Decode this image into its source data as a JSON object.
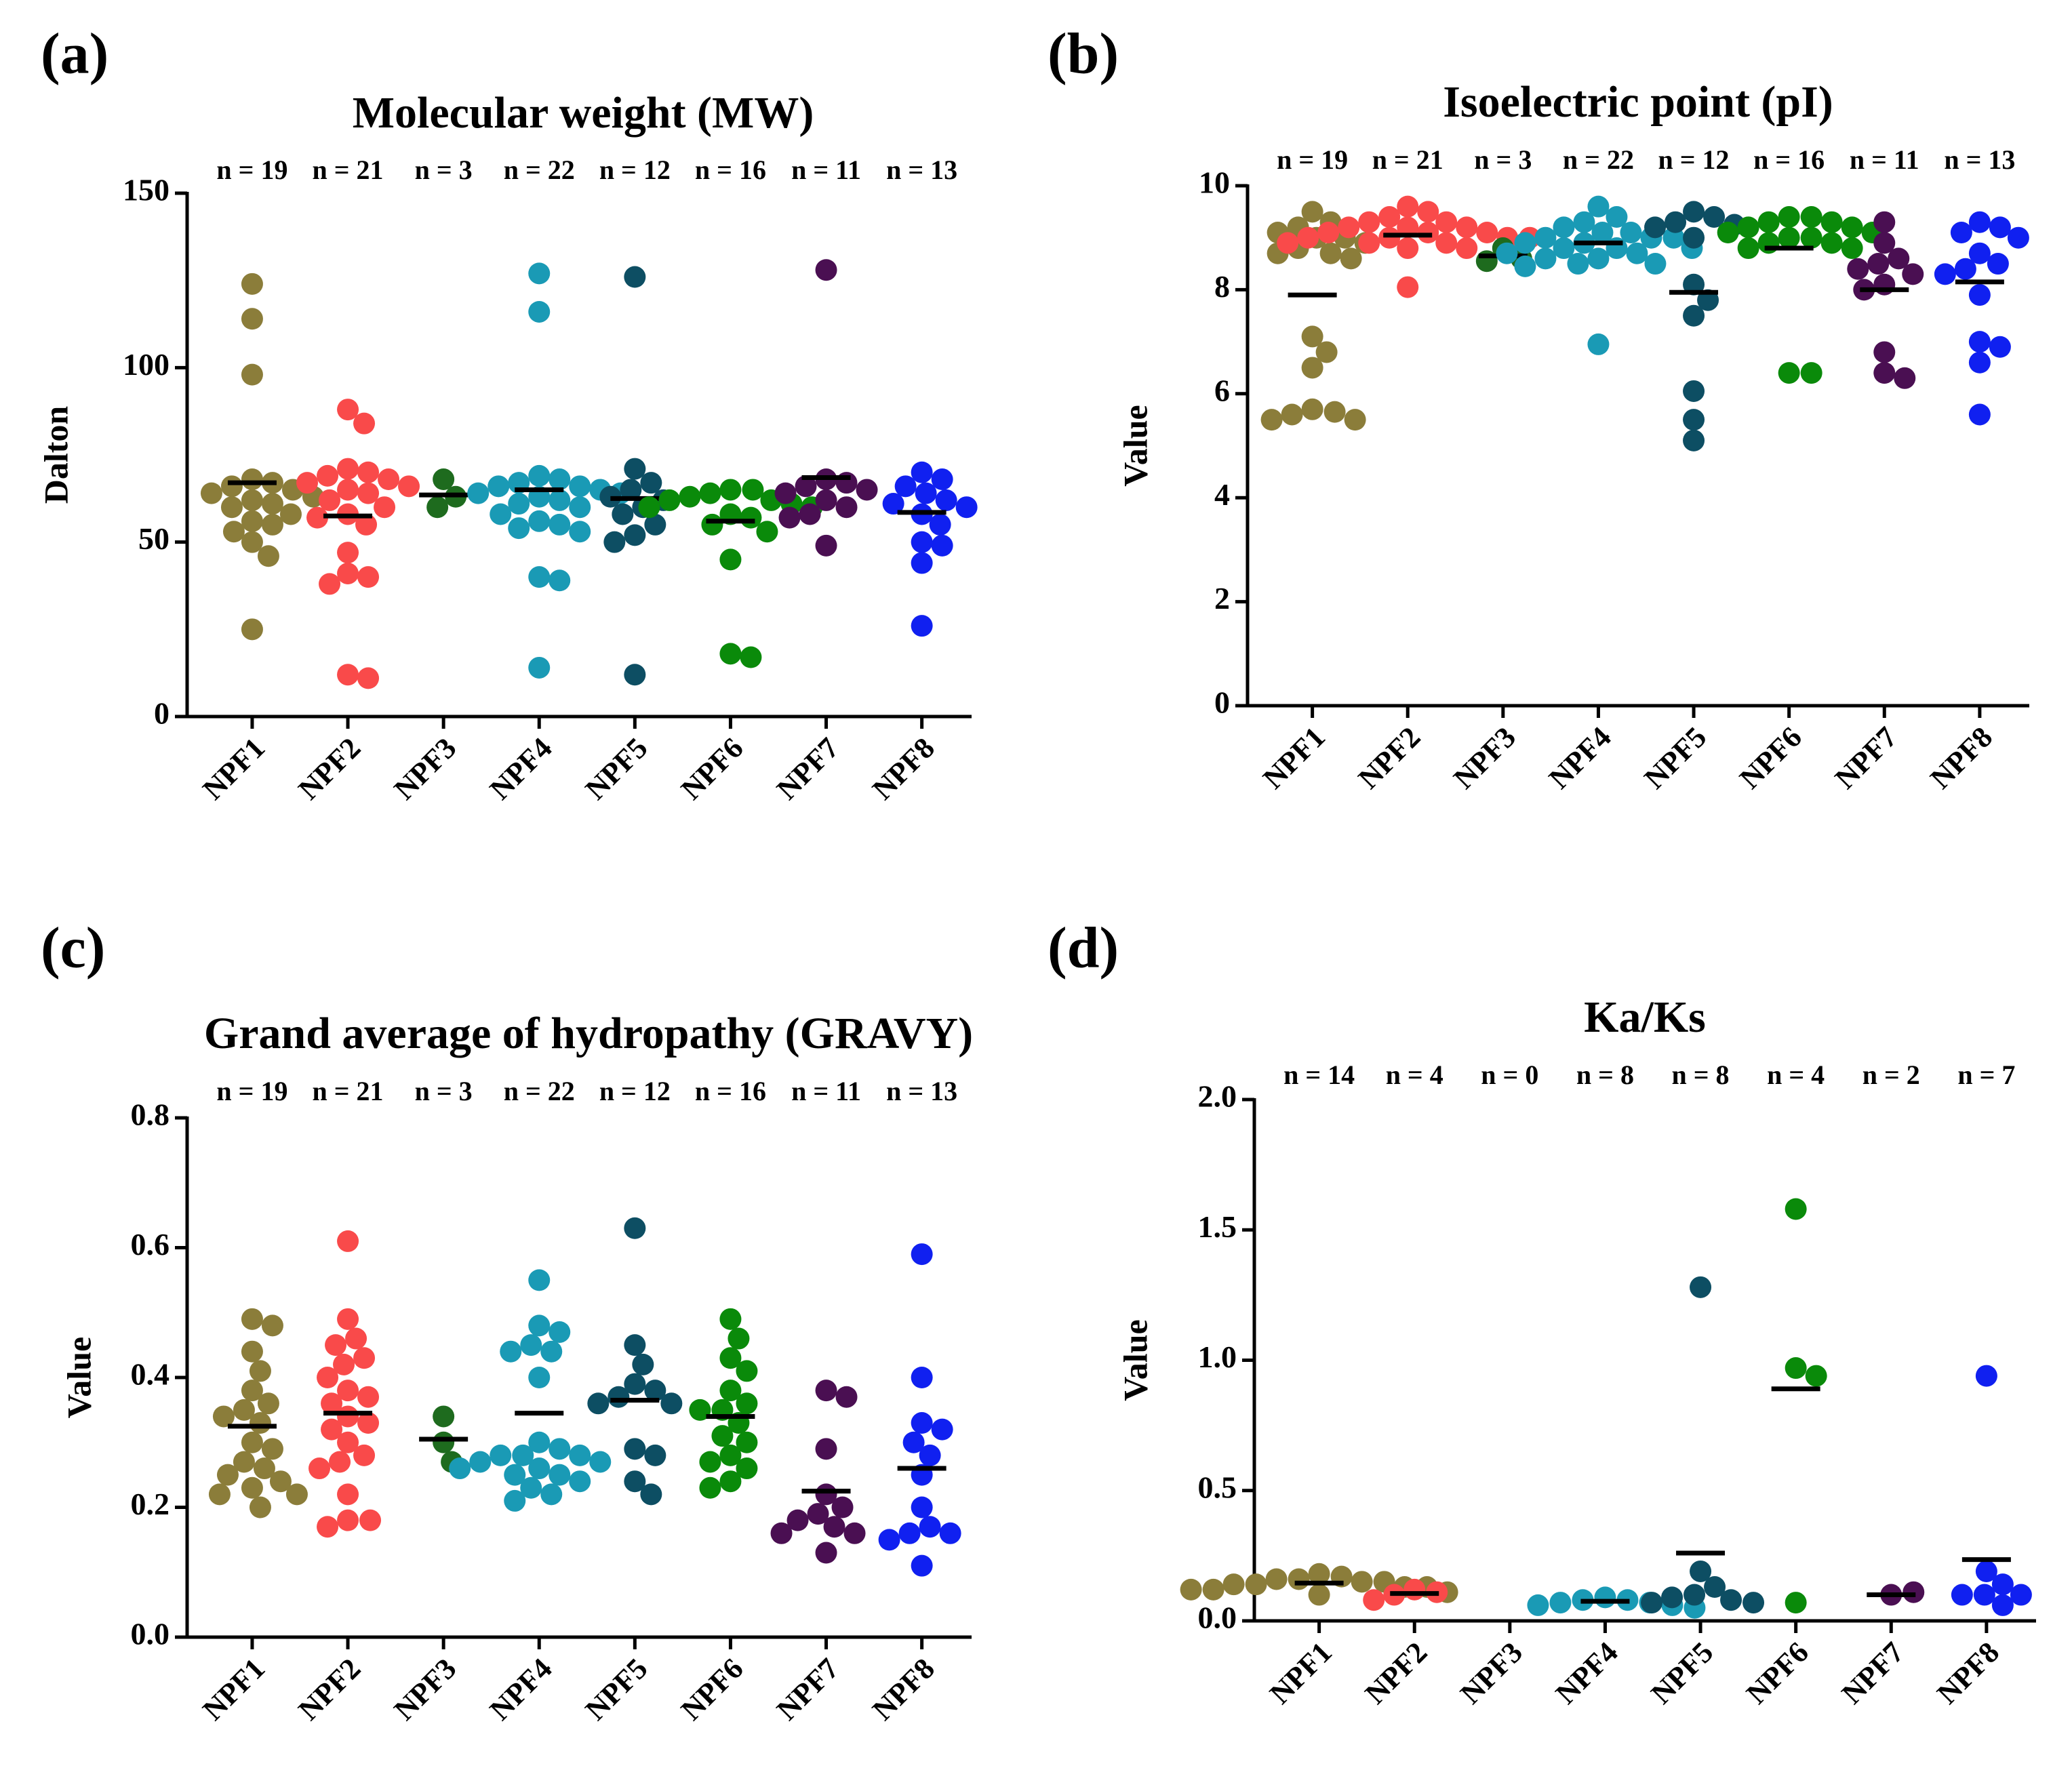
{
  "chart_data": [
    {
      "type": "strip",
      "panel_label": "(a)",
      "title": "Molecular weight (MW)",
      "ylabel": "Dalton",
      "categories": [
        "NPF1",
        "NPF2",
        "NPF3",
        "NPF4",
        "NPF5",
        "NPF6",
        "NPF7",
        "NPF8"
      ],
      "colors": [
        "#8b7d3a",
        "#f94a4a",
        "#1e6b1e",
        "#1a9ab5",
        "#0d4e63",
        "#0a8a0a",
        "#4a0f52",
        "#1020f0"
      ],
      "n_labels": [
        "n = 19",
        "n = 21",
        "n = 3",
        "n = 22",
        "n = 12",
        "n = 16",
        "n = 11",
        "n = 13"
      ],
      "values": [
        [
          124,
          114,
          98,
          68,
          67,
          66,
          65,
          64,
          63,
          62,
          61,
          60,
          58,
          56,
          55,
          53,
          50,
          46,
          25
        ],
        [
          88,
          84,
          71,
          70,
          69,
          68,
          67,
          66,
          65,
          64,
          62,
          60,
          58,
          57,
          55,
          47,
          41,
          40,
          38,
          12,
          11
        ],
        [
          68,
          63,
          60
        ],
        [
          127,
          116,
          69,
          68,
          67,
          66,
          66,
          65,
          64,
          64,
          63,
          62,
          61,
          60,
          58,
          56,
          55,
          54,
          53,
          40,
          39,
          14
        ],
        [
          126,
          71,
          67,
          65,
          63,
          62,
          60,
          58,
          55,
          52,
          50,
          12
        ],
        [
          65,
          65,
          64,
          63,
          62,
          62,
          61,
          60,
          60,
          58,
          57,
          55,
          53,
          45,
          18,
          17
        ],
        [
          128,
          68,
          67,
          66,
          65,
          64,
          62,
          60,
          58,
          57,
          49
        ],
        [
          70,
          68,
          66,
          64,
          62,
          61,
          60,
          58,
          55,
          50,
          49,
          44,
          26
        ]
      ],
      "means": [
        67,
        57.5,
        63.5,
        65,
        62.5,
        56,
        68.5,
        58.5
      ],
      "ylim": [
        0,
        150
      ],
      "yticks": [
        0,
        50,
        100,
        150
      ]
    },
    {
      "type": "strip",
      "panel_label": "(b)",
      "title": "Isoelectric point (pI)",
      "ylabel": "Value",
      "categories": [
        "NPF1",
        "NPF2",
        "NPF3",
        "NPF4",
        "NPF5",
        "NPF6",
        "NPF7",
        "NPF8"
      ],
      "colors": [
        "#8b7d3a",
        "#f94a4a",
        "#1e6b1e",
        "#1a9ab5",
        "#0d4e63",
        "#0a8a0a",
        "#4a0f52",
        "#1020f0"
      ],
      "n_labels": [
        "n = 19",
        "n = 21",
        "n = 3",
        "n = 22",
        "n = 12",
        "n = 16",
        "n = 11",
        "n = 13"
      ],
      "values": [
        [
          9.5,
          9.3,
          9.2,
          9.1,
          9.0,
          9.0,
          8.9,
          8.8,
          8.7,
          8.7,
          8.6,
          7.1,
          6.8,
          6.5,
          5.7,
          5.65,
          5.6,
          5.5,
          5.5
        ],
        [
          9.6,
          9.5,
          9.4,
          9.3,
          9.3,
          9.2,
          9.2,
          9.2,
          9.1,
          9.1,
          9.1,
          9.0,
          9.0,
          9.0,
          9.0,
          8.9,
          8.9,
          8.9,
          8.8,
          8.8,
          8.05
        ],
        [
          8.8,
          8.6,
          8.55
        ],
        [
          9.6,
          9.4,
          9.3,
          9.2,
          9.1,
          9.1,
          9.0,
          9.0,
          9.0,
          8.9,
          8.9,
          8.8,
          8.8,
          8.8,
          8.7,
          8.7,
          8.6,
          8.6,
          8.5,
          8.5,
          8.45,
          6.95
        ],
        [
          9.5,
          9.4,
          9.3,
          9.25,
          9.2,
          9.0,
          8.1,
          7.8,
          7.5,
          6.05,
          5.5,
          5.1
        ],
        [
          9.4,
          9.4,
          9.3,
          9.3,
          9.2,
          9.2,
          9.1,
          9.1,
          9.0,
          9.0,
          8.9,
          8.9,
          8.8,
          8.8,
          6.4,
          6.4
        ],
        [
          9.3,
          8.9,
          8.6,
          8.5,
          8.4,
          8.3,
          8.1,
          8.0,
          6.8,
          6.4,
          6.3
        ],
        [
          9.3,
          9.2,
          9.1,
          9.0,
          8.7,
          8.5,
          8.4,
          8.3,
          7.9,
          7.0,
          6.9,
          6.6,
          5.6
        ]
      ],
      "means": [
        7.9,
        9.05,
        8.65,
        8.9,
        7.95,
        8.8,
        8.0,
        8.15
      ],
      "ylim": [
        0,
        10
      ],
      "yticks": [
        0,
        2,
        4,
        6,
        8,
        10
      ]
    },
    {
      "type": "strip",
      "panel_label": "(c)",
      "title": "Grand average of hydropathy (GRAVY)",
      "ylabel": "Value",
      "categories": [
        "NPF1",
        "NPF2",
        "NPF3",
        "NPF4",
        "NPF5",
        "NPF6",
        "NPF7",
        "NPF8"
      ],
      "colors": [
        "#8b7d3a",
        "#f94a4a",
        "#1e6b1e",
        "#1a9ab5",
        "#0d4e63",
        "#0a8a0a",
        "#4a0f52",
        "#1020f0"
      ],
      "n_labels": [
        "n = 19",
        "n = 21",
        "n = 3",
        "n = 22",
        "n = 12",
        "n = 16",
        "n = 11",
        "n = 13"
      ],
      "values": [
        [
          0.49,
          0.48,
          0.44,
          0.41,
          0.38,
          0.36,
          0.35,
          0.34,
          0.33,
          0.3,
          0.29,
          0.27,
          0.26,
          0.25,
          0.24,
          0.23,
          0.22,
          0.22,
          0.2
        ],
        [
          0.61,
          0.49,
          0.46,
          0.45,
          0.43,
          0.42,
          0.4,
          0.38,
          0.37,
          0.36,
          0.34,
          0.33,
          0.32,
          0.3,
          0.28,
          0.27,
          0.26,
          0.22,
          0.18,
          0.18,
          0.17
        ],
        [
          0.34,
          0.3,
          0.27
        ],
        [
          0.55,
          0.48,
          0.47,
          0.45,
          0.44,
          0.44,
          0.4,
          0.3,
          0.29,
          0.28,
          0.28,
          0.28,
          0.27,
          0.27,
          0.26,
          0.26,
          0.25,
          0.25,
          0.24,
          0.23,
          0.22,
          0.21
        ],
        [
          0.63,
          0.45,
          0.42,
          0.39,
          0.38,
          0.37,
          0.36,
          0.36,
          0.29,
          0.28,
          0.24,
          0.22
        ],
        [
          0.49,
          0.46,
          0.43,
          0.41,
          0.38,
          0.36,
          0.35,
          0.35,
          0.33,
          0.31,
          0.3,
          0.28,
          0.27,
          0.26,
          0.24,
          0.23
        ],
        [
          0.38,
          0.37,
          0.29,
          0.22,
          0.2,
          0.19,
          0.18,
          0.17,
          0.16,
          0.16,
          0.13
        ],
        [
          0.59,
          0.4,
          0.33,
          0.32,
          0.3,
          0.28,
          0.25,
          0.2,
          0.17,
          0.16,
          0.16,
          0.15,
          0.11
        ]
      ],
      "means": [
        0.325,
        0.345,
        0.305,
        0.345,
        0.365,
        0.34,
        0.225,
        0.26
      ],
      "ylim": [
        0,
        0.8
      ],
      "yticks": [
        {
          "value": 0,
          "label": "0.0"
        },
        0.2,
        0.4,
        0.6,
        0.8
      ]
    },
    {
      "type": "strip",
      "panel_label": "(d)",
      "title": "Ka/Ks",
      "ylabel": "Value",
      "categories": [
        "NPF1",
        "NPF2",
        "NPF3",
        "NPF4",
        "NPF5",
        "NPF6",
        "NPF7",
        "NPF8"
      ],
      "colors": [
        "#8b7d3a",
        "#f94a4a",
        "#1e6b1e",
        "#1a9ab5",
        "#0d4e63",
        "#0a8a0a",
        "#4a0f52",
        "#1020f0"
      ],
      "n_labels": [
        "n = 14",
        "n = 4",
        "n = 0",
        "n = 8",
        "n = 8",
        "n = 4",
        "n = 2",
        "n = 7"
      ],
      "values": [
        [
          0.18,
          0.17,
          0.16,
          0.16,
          0.15,
          0.15,
          0.14,
          0.14,
          0.13,
          0.13,
          0.12,
          0.12,
          0.11,
          0.1
        ],
        [
          0.12,
          0.11,
          0.1,
          0.08
        ],
        [],
        [
          0.09,
          0.08,
          0.08,
          0.07,
          0.07,
          0.06,
          0.06,
          0.05
        ],
        [
          1.28,
          0.19,
          0.13,
          0.1,
          0.09,
          0.08,
          0.07,
          0.07
        ],
        [
          1.58,
          0.97,
          0.94,
          0.07
        ],
        [
          0.1,
          0.11
        ],
        [
          0.94,
          0.19,
          0.14,
          0.1,
          0.1,
          0.1,
          0.06
        ]
      ],
      "means": [
        0.145,
        0.105,
        null,
        0.075,
        0.26,
        0.89,
        0.1,
        0.235
      ],
      "ylim": [
        0,
        2
      ],
      "yticks": [
        {
          "value": 0,
          "label": "0.0"
        },
        0.5,
        {
          "value": 1,
          "label": "1.0"
        },
        1.5,
        {
          "value": 2,
          "label": "2.0"
        }
      ]
    }
  ]
}
